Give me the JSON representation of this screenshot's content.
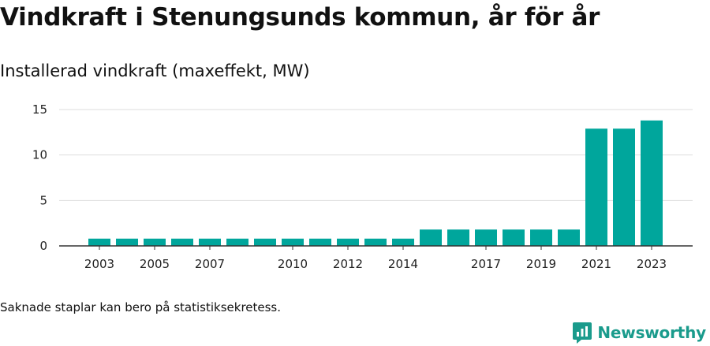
{
  "title": "Vindkraft i Stenungsunds kommun, år för år",
  "subtitle": "Installerad vindkraft (maxeffekt, MW)",
  "footnote": "Saknade staplar kan bero på statistiksekretess.",
  "brand": "Newsworthy",
  "colors": {
    "bar": "#00a69c",
    "grid": "#dddddd",
    "axis": "#333333",
    "brand": "#1a9b8c"
  },
  "chart_data": {
    "type": "bar",
    "x": [
      2003,
      2004,
      2005,
      2006,
      2007,
      2008,
      2009,
      2010,
      2011,
      2012,
      2013,
      2014,
      2015,
      2016,
      2017,
      2018,
      2019,
      2020,
      2021,
      2022,
      2023
    ],
    "values": [
      0.8,
      0.8,
      0.8,
      0.8,
      0.8,
      0.8,
      0.8,
      0.8,
      0.8,
      0.8,
      0.8,
      0.8,
      1.8,
      1.8,
      1.8,
      1.8,
      1.8,
      1.8,
      12.9,
      12.9,
      13.8
    ],
    "x_tick_labels": [
      2003,
      2005,
      2007,
      2010,
      2012,
      2014,
      2017,
      2019,
      2021,
      2023
    ],
    "y_ticks": [
      0,
      5,
      10,
      15
    ],
    "ylim": [
      0,
      15
    ],
    "grid": true,
    "title": "Vindkraft i Stenungsunds kommun, år för år",
    "ylabel": "Installerad vindkraft (maxeffekt, MW)",
    "xlabel": ""
  }
}
